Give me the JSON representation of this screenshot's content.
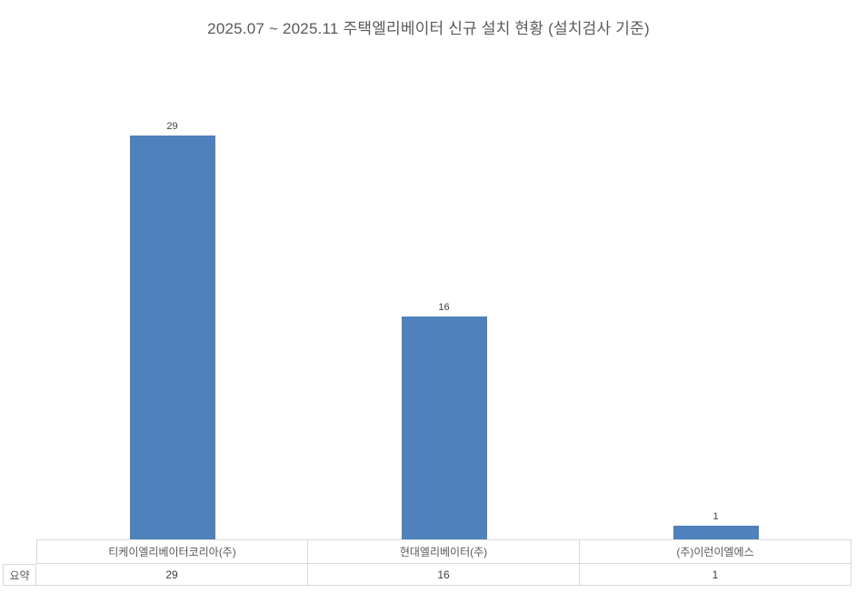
{
  "chart_data": {
    "type": "bar",
    "title": "2025.07 ~ 2025.11 주택엘리베이터 신규 설치 현황 (설치검사 기준)",
    "categories": [
      "티케이엘리베이터코리아(주)",
      "현대엘리베이터(주)",
      "(주)이런이엘에스"
    ],
    "series": [
      {
        "name": "요약",
        "values": [
          29,
          16,
          1
        ]
      }
    ],
    "xlabel": "",
    "ylabel": "",
    "ylim": [
      0,
      30
    ],
    "grid": false,
    "legend": "none",
    "data_labels_shown": true,
    "data_table_shown": true
  },
  "colors": {
    "bar": "#4F81BD",
    "title_text": "#595959",
    "data_label_text": "#404040",
    "table_border": "#D9D9D9",
    "table_text": "#595959",
    "background": "#FFFFFF"
  }
}
